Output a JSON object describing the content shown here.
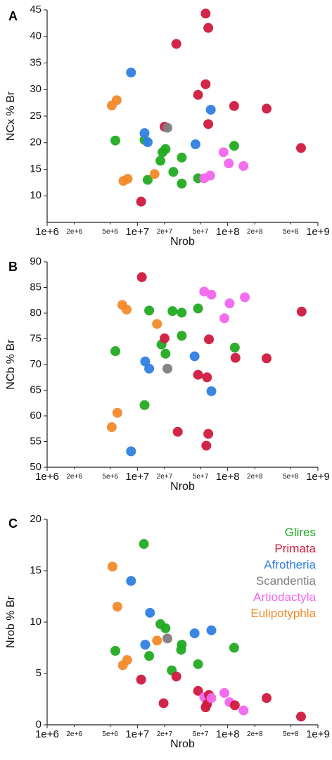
{
  "colors": {
    "Glires": "#22aa22",
    "Primata": "#d01a3e",
    "Afrotheria": "#2f7fe0",
    "Scandentia": "#808080",
    "Artiodactyla": "#f266ee",
    "Eulipotyphla": "#f28a2a"
  },
  "legend": [
    "Glires",
    "Primata",
    "Afrotheria",
    "Scandentia",
    "Artiodactyla",
    "Eulipotyphla"
  ],
  "chart_data": [
    {
      "type": "scatter",
      "panel": "A",
      "xlabel": "Nrob",
      "ylabel": "NCx % Br",
      "xscale": "log",
      "xlim": [
        1000000,
        1000000000
      ],
      "ylim": [
        5,
        45
      ],
      "yticks": [
        10,
        15,
        20,
        25,
        30,
        35,
        40,
        45
      ],
      "xticks_major": [
        "1e+6",
        "1e+7",
        "1e+8",
        "1e+9"
      ],
      "xticks_minor": [
        "2e+6",
        "5e+6",
        "2e+7",
        "5e+7",
        "2e+8",
        "5e+8"
      ],
      "points": [
        {
          "g": "Eulipotyphla",
          "x": 5200000,
          "y": 27.0
        },
        {
          "g": "Eulipotyphla",
          "x": 5900000,
          "y": 28.0
        },
        {
          "g": "Glires",
          "x": 5700000,
          "y": 20.4
        },
        {
          "g": "Eulipotyphla",
          "x": 7000000,
          "y": 12.8
        },
        {
          "g": "Eulipotyphla",
          "x": 7800000,
          "y": 13.2
        },
        {
          "g": "Afrotheria",
          "x": 8500000,
          "y": 33.2
        },
        {
          "g": "Primata",
          "x": 11000000,
          "y": 8.9
        },
        {
          "g": "Glires",
          "x": 12000000,
          "y": 20.5
        },
        {
          "g": "Afrotheria",
          "x": 12000000,
          "y": 21.8
        },
        {
          "g": "Afrotheria",
          "x": 13000000,
          "y": 20.1
        },
        {
          "g": "Glires",
          "x": 13000000,
          "y": 13.0
        },
        {
          "g": "Eulipotyphla",
          "x": 15500000,
          "y": 14.1
        },
        {
          "g": "Glires",
          "x": 18000000,
          "y": 16.6
        },
        {
          "g": "Glires",
          "x": 19000000,
          "y": 18.2
        },
        {
          "g": "Primata",
          "x": 20000000,
          "y": 23.0
        },
        {
          "g": "Scandentia",
          "x": 21500000,
          "y": 22.8
        },
        {
          "g": "Glires",
          "x": 20500000,
          "y": 18.8
        },
        {
          "g": "Glires",
          "x": 25000000,
          "y": 14.5
        },
        {
          "g": "Primata",
          "x": 27000000,
          "y": 38.6
        },
        {
          "g": "Glires",
          "x": 31000000,
          "y": 17.2
        },
        {
          "g": "Glires",
          "x": 31000000,
          "y": 12.3
        },
        {
          "g": "Afrotheria",
          "x": 44000000,
          "y": 19.7
        },
        {
          "g": "Primata",
          "x": 47000000,
          "y": 29.0
        },
        {
          "g": "Glires",
          "x": 47000000,
          "y": 13.3
        },
        {
          "g": "Artiodactyla",
          "x": 55000000,
          "y": 13.3
        },
        {
          "g": "Primata",
          "x": 57000000,
          "y": 44.3
        },
        {
          "g": "Primata",
          "x": 57000000,
          "y": 31.0
        },
        {
          "g": "Primata",
          "x": 61000000,
          "y": 41.6
        },
        {
          "g": "Primata",
          "x": 61000000,
          "y": 23.5
        },
        {
          "g": "Artiodactyla",
          "x": 64000000,
          "y": 13.8
        },
        {
          "g": "Afrotheria",
          "x": 65000000,
          "y": 26.2
        },
        {
          "g": "Artiodactyla",
          "x": 90000000,
          "y": 18.2
        },
        {
          "g": "Artiodactyla",
          "x": 103000000,
          "y": 16.1
        },
        {
          "g": "Glires",
          "x": 118000000,
          "y": 19.4
        },
        {
          "g": "Primata",
          "x": 118000000,
          "y": 26.9
        },
        {
          "g": "Artiodactyla",
          "x": 150000000,
          "y": 15.6
        },
        {
          "g": "Primata",
          "x": 270000000,
          "y": 26.4
        },
        {
          "g": "Primata",
          "x": 650000000,
          "y": 19.0
        }
      ]
    },
    {
      "type": "scatter",
      "panel": "B",
      "xlabel": "Nrob",
      "ylabel": "NCb % Br",
      "xscale": "log",
      "xlim": [
        1000000,
        1000000000
      ],
      "ylim": [
        50,
        90
      ],
      "yticks": [
        50,
        55,
        60,
        65,
        70,
        75,
        80,
        85,
        90
      ],
      "xticks_major": [
        "1e+6",
        "1e+7",
        "1e+8",
        "1e+9"
      ],
      "xticks_minor": [
        "2e+6",
        "5e+6",
        "2e+7",
        "5e+7",
        "2e+8",
        "5e+8"
      ],
      "points": [
        {
          "g": "Eulipotyphla",
          "x": 5200000,
          "y": 57.8
        },
        {
          "g": "Eulipotyphla",
          "x": 6000000,
          "y": 60.6
        },
        {
          "g": "Glires",
          "x": 5700000,
          "y": 72.6
        },
        {
          "g": "Eulipotyphla",
          "x": 6800000,
          "y": 81.6
        },
        {
          "g": "Eulipotyphla",
          "x": 7600000,
          "y": 80.7
        },
        {
          "g": "Afrotheria",
          "x": 8500000,
          "y": 53.1
        },
        {
          "g": "Primata",
          "x": 11200000,
          "y": 87.0
        },
        {
          "g": "Glires",
          "x": 12000000,
          "y": 62.1
        },
        {
          "g": "Afrotheria",
          "x": 12200000,
          "y": 70.6
        },
        {
          "g": "Afrotheria",
          "x": 13500000,
          "y": 69.2
        },
        {
          "g": "Glires",
          "x": 13500000,
          "y": 80.5
        },
        {
          "g": "Eulipotyphla",
          "x": 16500000,
          "y": 77.9
        },
        {
          "g": "Glires",
          "x": 18500000,
          "y": 73.9
        },
        {
          "g": "Primata",
          "x": 20000000,
          "y": 75.1
        },
        {
          "g": "Glires",
          "x": 20500000,
          "y": 72.1
        },
        {
          "g": "Scandentia",
          "x": 21500000,
          "y": 69.2
        },
        {
          "g": "Glires",
          "x": 24500000,
          "y": 80.4
        },
        {
          "g": "Primata",
          "x": 28000000,
          "y": 56.9
        },
        {
          "g": "Glires",
          "x": 31000000,
          "y": 75.6
        },
        {
          "g": "Glires",
          "x": 31000000,
          "y": 80.1
        },
        {
          "g": "Afrotheria",
          "x": 43000000,
          "y": 71.6
        },
        {
          "g": "Primata",
          "x": 47000000,
          "y": 68.0
        },
        {
          "g": "Glires",
          "x": 47000000,
          "y": 80.9
        },
        {
          "g": "Artiodactyla",
          "x": 55000000,
          "y": 84.2
        },
        {
          "g": "Primata",
          "x": 58000000,
          "y": 54.2
        },
        {
          "g": "Primata",
          "x": 59000000,
          "y": 67.5
        },
        {
          "g": "Primata",
          "x": 61000000,
          "y": 56.5
        },
        {
          "g": "Primata",
          "x": 62000000,
          "y": 74.9
        },
        {
          "g": "Artiodactyla",
          "x": 66000000,
          "y": 83.6
        },
        {
          "g": "Afrotheria",
          "x": 66000000,
          "y": 64.8
        },
        {
          "g": "Artiodactyla",
          "x": 92000000,
          "y": 79.0
        },
        {
          "g": "Artiodactyla",
          "x": 105000000,
          "y": 81.9
        },
        {
          "g": "Glires",
          "x": 120000000,
          "y": 73.3
        },
        {
          "g": "Primata",
          "x": 122000000,
          "y": 71.3
        },
        {
          "g": "Artiodactyla",
          "x": 155000000,
          "y": 83.1
        },
        {
          "g": "Primata",
          "x": 270000000,
          "y": 71.2
        },
        {
          "g": "Primata",
          "x": 660000000,
          "y": 80.3
        }
      ]
    },
    {
      "type": "scatter",
      "panel": "C",
      "xlabel": "Nrob",
      "ylabel": "Nrob % Br",
      "xscale": "log",
      "xlim": [
        1000000,
        1000000000
      ],
      "ylim": [
        0,
        20
      ],
      "yticks": [
        0,
        5,
        10,
        15,
        20
      ],
      "xticks_major": [
        "1e+6",
        "1e+7",
        "1e+8",
        "1e+9"
      ],
      "xticks_minor": [
        "2e+6",
        "5e+6",
        "2e+7",
        "5e+7",
        "2e+8",
        "5e+8"
      ],
      "points": [
        {
          "g": "Eulipotyphla",
          "x": 5300000,
          "y": 15.4
        },
        {
          "g": "Eulipotyphla",
          "x": 6000000,
          "y": 11.5
        },
        {
          "g": "Glires",
          "x": 5700000,
          "y": 7.2
        },
        {
          "g": "Eulipotyphla",
          "x": 6900000,
          "y": 5.8
        },
        {
          "g": "Eulipotyphla",
          "x": 7700000,
          "y": 6.3
        },
        {
          "g": "Afrotheria",
          "x": 8500000,
          "y": 14.0
        },
        {
          "g": "Primata",
          "x": 11000000,
          "y": 4.4
        },
        {
          "g": "Glires",
          "x": 11800000,
          "y": 17.6
        },
        {
          "g": "Afrotheria",
          "x": 12200000,
          "y": 7.8
        },
        {
          "g": "Afrotheria",
          "x": 13800000,
          "y": 10.9
        },
        {
          "g": "Glires",
          "x": 13500000,
          "y": 6.7
        },
        {
          "g": "Eulipotyphla",
          "x": 16500000,
          "y": 8.2
        },
        {
          "g": "Glires",
          "x": 18000000,
          "y": 9.8
        },
        {
          "g": "Primata",
          "x": 19500000,
          "y": 2.1
        },
        {
          "g": "Glires",
          "x": 20500000,
          "y": 9.4
        },
        {
          "g": "Scandentia",
          "x": 21500000,
          "y": 8.4
        },
        {
          "g": "Glires",
          "x": 24000000,
          "y": 5.3
        },
        {
          "g": "Primata",
          "x": 27000000,
          "y": 4.7
        },
        {
          "g": "Glires",
          "x": 31000000,
          "y": 7.8
        },
        {
          "g": "Glires",
          "x": 30500000,
          "y": 7.3
        },
        {
          "g": "Afrotheria",
          "x": 43000000,
          "y": 8.9
        },
        {
          "g": "Primata",
          "x": 47000000,
          "y": 3.3
        },
        {
          "g": "Glires",
          "x": 47000000,
          "y": 5.9
        },
        {
          "g": "Artiodactyla",
          "x": 55000000,
          "y": 2.7
        },
        {
          "g": "Primata",
          "x": 57000000,
          "y": 1.7
        },
        {
          "g": "Primata",
          "x": 59000000,
          "y": 2.0
        },
        {
          "g": "Primata",
          "x": 62000000,
          "y": 2.9
        },
        {
          "g": "Artiodactyla",
          "x": 66000000,
          "y": 2.6
        },
        {
          "g": "Afrotheria",
          "x": 66000000,
          "y": 9.2
        },
        {
          "g": "Artiodactyla",
          "x": 92000000,
          "y": 3.1
        },
        {
          "g": "Artiodactyla",
          "x": 105000000,
          "y": 2.2
        },
        {
          "g": "Glires",
          "x": 118000000,
          "y": 7.5
        },
        {
          "g": "Primata",
          "x": 120000000,
          "y": 1.9
        },
        {
          "g": "Artiodactyla",
          "x": 150000000,
          "y": 1.4
        },
        {
          "g": "Primata",
          "x": 270000000,
          "y": 2.6
        },
        {
          "g": "Primata",
          "x": 650000000,
          "y": 0.8
        }
      ]
    }
  ]
}
